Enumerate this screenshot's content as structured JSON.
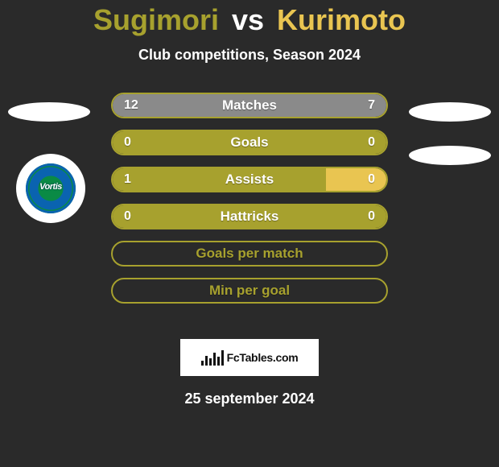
{
  "title": {
    "player1": "Sugimori",
    "vs": "vs",
    "player2": "Kurimoto",
    "player1_color": "#a7a12e",
    "player2_color": "#e9c551"
  },
  "subtitle": "Club competitions, Season 2024",
  "crest_text": "Vortis",
  "rows": [
    {
      "label": "Matches",
      "left": "12",
      "right": "7",
      "left_pct": 63,
      "right_pct": 37,
      "left_color": "#8a8a8a",
      "right_color": "#8a8a8a",
      "border_color": "#a7a12e"
    },
    {
      "label": "Goals",
      "left": "0",
      "right": "0",
      "left_pct": 50,
      "right_pct": 50,
      "left_color": "#a7a12e",
      "right_color": "#a7a12e",
      "border_color": "#a7a12e"
    },
    {
      "label": "Assists",
      "left": "1",
      "right": "0",
      "left_pct": 78,
      "right_pct": 22,
      "left_color": "#a7a12e",
      "right_color": "#e9c551",
      "border_color": "#a7a12e"
    },
    {
      "label": "Hattricks",
      "left": "0",
      "right": "0",
      "left_pct": 50,
      "right_pct": 50,
      "left_color": "#a7a12e",
      "right_color": "#a7a12e",
      "border_color": "#a7a12e"
    },
    {
      "label": "Goals per match",
      "left": "",
      "right": "",
      "left_pct": 0,
      "right_pct": 0,
      "left_color": "transparent",
      "right_color": "transparent",
      "border_color": "#a7a12e",
      "label_color": "#a7a12e"
    },
    {
      "label": "Min per goal",
      "left": "",
      "right": "",
      "left_pct": 0,
      "right_pct": 0,
      "left_color": "transparent",
      "right_color": "transparent",
      "border_color": "#a7a12e",
      "label_color": "#a7a12e"
    }
  ],
  "logo_text": "FcTables.com",
  "logo_bar_heights": [
    6,
    12,
    9,
    16,
    11,
    19
  ],
  "date": "25 september 2024",
  "background_color": "#2a2a2a",
  "ellipse_color": "#ffffff"
}
